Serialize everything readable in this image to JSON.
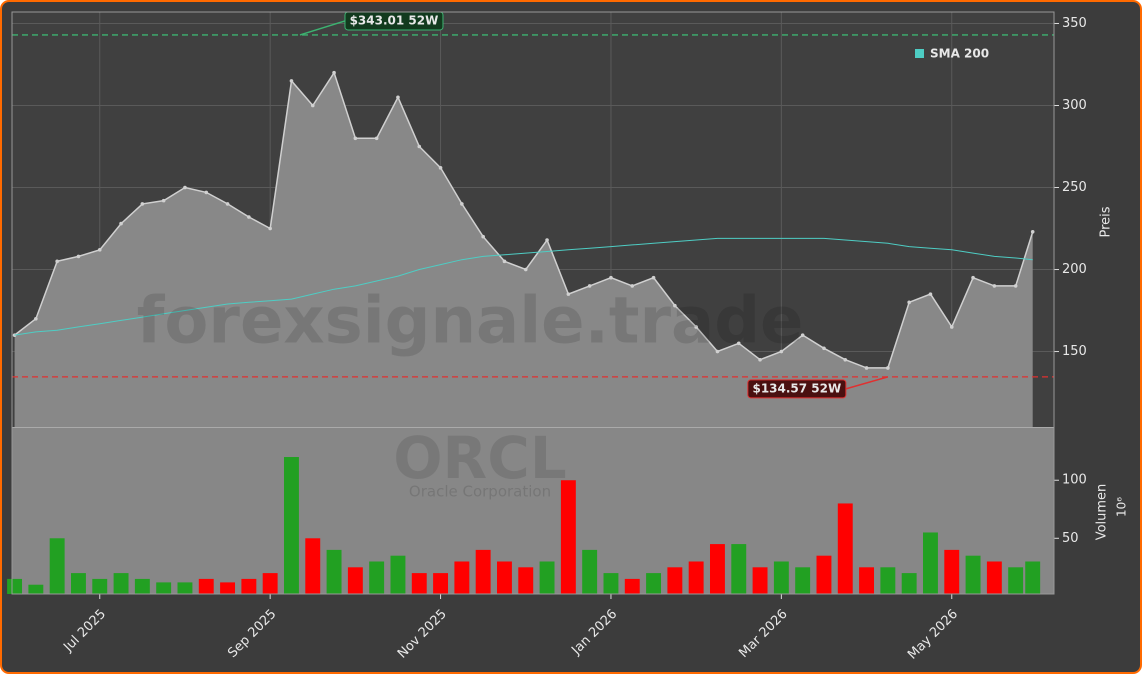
{
  "watermark": "forexsignale.trade",
  "ticker": "ORCL",
  "company": "Oracle Corporation",
  "chart_data": [
    {
      "type": "area",
      "ylabel": "Preis",
      "grid": true,
      "legend": "upper right",
      "xlim": [
        5.97,
        18.2
      ],
      "xticks": [
        {
          "value": 7,
          "label": "Jul 2025"
        },
        {
          "value": 9,
          "label": "Sep 2025"
        },
        {
          "value": 11,
          "label": "Nov 2025"
        },
        {
          "value": 13,
          "label": "Jan 2026"
        },
        {
          "value": 15,
          "label": "Mar 2026"
        },
        {
          "value": 17,
          "label": "May 2026"
        }
      ],
      "ylim": [
        104,
        357
      ],
      "yticks": [
        150,
        200,
        250,
        300,
        350
      ],
      "x": [
        6,
        6.25,
        6.5,
        6.75,
        7,
        7.25,
        7.5,
        7.75,
        8,
        8.25,
        8.5,
        8.75,
        9,
        9.25,
        9.5,
        9.75,
        10,
        10.25,
        10.5,
        10.75,
        11,
        11.25,
        11.5,
        11.75,
        12,
        12.25,
        12.5,
        12.75,
        13,
        13.25,
        13.5,
        13.75,
        14,
        14.25,
        14.5,
        14.75,
        15,
        15.25,
        15.5,
        15.75,
        16,
        16.25,
        16.5,
        16.75,
        17,
        17.25,
        17.5,
        17.75,
        17.95
      ],
      "series": [
        {
          "color": "#d0d0d0",
          "fill": "#888888",
          "values": [
            160,
            170,
            205,
            208,
            212,
            228,
            240,
            242,
            250,
            247,
            240,
            232,
            225,
            315,
            300,
            320,
            280,
            280,
            305,
            275,
            262,
            240,
            220,
            205,
            200,
            218,
            185,
            190,
            195,
            190,
            195,
            178,
            165,
            150,
            155,
            145,
            150,
            160,
            152,
            145,
            140,
            140,
            180,
            185,
            165,
            195,
            190,
            190,
            223
          ]
        },
        {
          "name": "SMA 200",
          "color": "#4ecdc4",
          "values": [
            160,
            162,
            163,
            165,
            167,
            169,
            171,
            173,
            175,
            177,
            179,
            180,
            181,
            182,
            185,
            188,
            190,
            193,
            196,
            200,
            203,
            206,
            208,
            209,
            210,
            211,
            212,
            213,
            214,
            215,
            216,
            217,
            218,
            219,
            219,
            219,
            219,
            219,
            219,
            218,
            217,
            216,
            214,
            213,
            212,
            210,
            208,
            207,
            206
          ]
        }
      ],
      "annotations": [
        {
          "text": "$343.01 52W",
          "value": 343.01,
          "x": 9.35,
          "color": "#3cb371"
        },
        {
          "text": "$134.57 52W",
          "value": 134.57,
          "x": 16.25,
          "color": "#e03030"
        }
      ]
    },
    {
      "type": "bar",
      "ylabel": "Volumen",
      "unit": "10⁶",
      "up_color": "#22a022",
      "down_color": "#ff0000",
      "ylim": [
        2,
        145
      ],
      "yticks": [
        50,
        100
      ],
      "x": [
        6,
        6.25,
        6.5,
        6.75,
        7,
        7.25,
        7.5,
        7.75,
        8,
        8.25,
        8.5,
        8.75,
        9,
        9.25,
        9.5,
        9.75,
        10,
        10.25,
        10.5,
        10.75,
        11,
        11.25,
        11.5,
        11.75,
        12,
        12.25,
        12.5,
        12.75,
        13,
        13.25,
        13.5,
        13.75,
        14,
        14.25,
        14.5,
        14.75,
        15,
        15.25,
        15.5,
        15.75,
        16,
        16.25,
        16.5,
        16.75,
        17,
        17.25,
        17.5,
        17.75,
        17.95
      ],
      "values": [
        15,
        10,
        50,
        20,
        15,
        20,
        15,
        12,
        12,
        15,
        12,
        15,
        20,
        120,
        50,
        40,
        25,
        30,
        35,
        20,
        20,
        30,
        40,
        30,
        25,
        30,
        100,
        40,
        20,
        15,
        20,
        25,
        30,
        45,
        45,
        25,
        30,
        25,
        35,
        80,
        25,
        25,
        20,
        55,
        40,
        35,
        30,
        25,
        30
      ]
    }
  ]
}
